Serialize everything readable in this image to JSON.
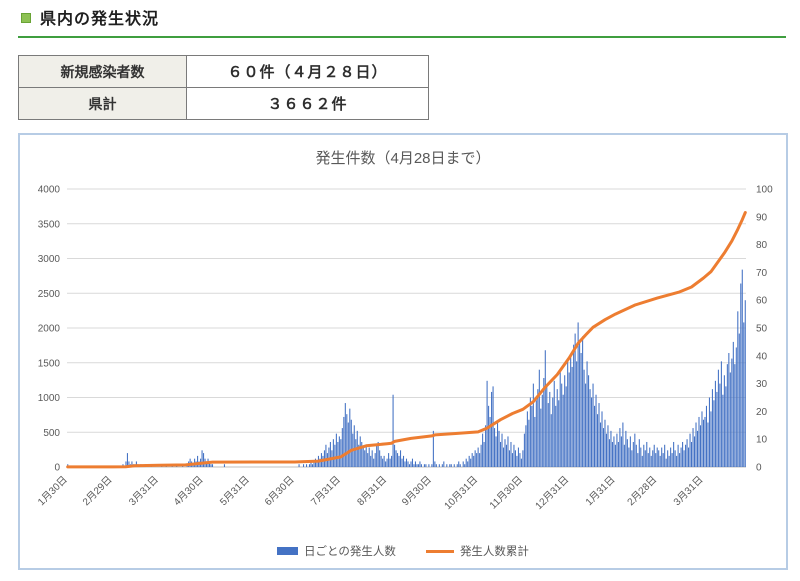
{
  "header": {
    "title": "県内の発生状況",
    "bullet_icon": "green-square-bullet",
    "rule_color": "#3f9e3f"
  },
  "summary_table": {
    "rows": [
      {
        "label": "新規感染者数",
        "value": "６０件（４月２８日）"
      },
      {
        "label": "県計",
        "value": "３６６２件"
      }
    ]
  },
  "chart_data": {
    "type": "combo",
    "title": "発生件数（4月28日まで）",
    "grid": true,
    "legend_position": "bottom",
    "num_days": 455,
    "x_tick_labels": [
      "1月30日",
      "2月29日",
      "3月31日",
      "4月30日",
      "5月31日",
      "6月30日",
      "7月31日",
      "8月31日",
      "9月30日",
      "10月31日",
      "11月30日",
      "12月31日",
      "1月31日",
      "2月28日",
      "3月31日"
    ],
    "x_tick_day_index": [
      0,
      30,
      61,
      91,
      122,
      152,
      183,
      214,
      244,
      275,
      305,
      336,
      367,
      395,
      426
    ],
    "left_axis": {
      "min": 0,
      "max": 4000,
      "ticks": [
        0,
        500,
        1000,
        1500,
        2000,
        2500,
        3000,
        3500,
        4000
      ]
    },
    "right_axis": {
      "min": 0,
      "max": 100,
      "ticks": [
        0,
        10,
        20,
        30,
        40,
        50,
        60,
        70,
        80,
        90,
        100
      ]
    },
    "colors": {
      "grid": "#d9d9d9",
      "axis_line": "#bfbfbf",
      "text": "#595959"
    },
    "series": [
      {
        "name": "日ごとの発生人数",
        "type": "bar",
        "axis": "right",
        "color": "#4472c4",
        "daily_values": [
          1,
          0,
          0,
          0,
          0,
          0,
          0,
          0,
          0,
          0,
          0,
          0,
          0,
          0,
          0,
          0,
          0,
          0,
          0,
          0,
          0,
          0,
          0,
          0,
          0,
          0,
          0,
          0,
          0,
          0,
          0,
          0,
          0,
          0,
          0,
          0,
          0,
          1,
          0,
          2,
          5,
          2,
          1,
          2,
          1,
          1,
          2,
          1,
          0,
          1,
          0,
          0,
          1,
          0,
          0,
          0,
          1,
          0,
          0,
          0,
          0,
          0,
          0,
          1,
          0,
          0,
          1,
          0,
          0,
          0,
          1,
          0,
          0,
          1,
          0,
          0,
          0,
          1,
          0,
          0,
          1,
          2,
          3,
          2,
          1,
          3,
          2,
          4,
          2,
          3,
          6,
          5,
          3,
          2,
          3,
          2,
          1,
          1,
          0,
          0,
          0,
          0,
          0,
          0,
          0,
          1,
          0,
          0,
          0,
          0,
          0,
          0,
          0,
          0,
          0,
          0,
          0,
          0,
          0,
          0,
          0,
          0,
          0,
          0,
          0,
          0,
          0,
          0,
          0,
          0,
          0,
          0,
          0,
          0,
          0,
          0,
          0,
          0,
          0,
          0,
          0,
          0,
          0,
          0,
          0,
          0,
          0,
          0,
          0,
          0,
          0,
          0,
          0,
          0,
          0,
          1,
          0,
          0,
          1,
          0,
          1,
          0,
          1,
          2,
          1,
          2,
          3,
          2,
          4,
          3,
          5,
          4,
          6,
          8,
          5,
          7,
          9,
          6,
          10,
          8,
          12,
          9,
          11,
          10,
          14,
          18,
          23,
          19,
          16,
          21,
          17,
          12,
          15,
          10,
          13,
          8,
          11,
          9,
          7,
          6,
          8,
          5,
          7,
          4,
          6,
          3,
          5,
          8,
          9,
          6,
          4,
          3,
          4,
          2,
          3,
          5,
          3,
          4,
          26,
          8,
          6,
          5,
          4,
          6,
          3,
          4,
          2,
          3,
          2,
          1,
          2,
          3,
          1,
          2,
          1,
          1,
          2,
          1,
          0,
          1,
          1,
          0,
          1,
          0,
          1,
          13,
          2,
          1,
          0,
          1,
          0,
          1,
          2,
          0,
          1,
          0,
          1,
          1,
          0,
          1,
          0,
          1,
          2,
          1,
          0,
          2,
          1,
          3,
          2,
          4,
          3,
          5,
          4,
          6,
          5,
          7,
          5,
          8,
          12,
          9,
          15,
          31,
          22,
          18,
          27,
          29,
          14,
          11,
          16,
          13,
          9,
          12,
          7,
          10,
          8,
          11,
          6,
          9,
          5,
          8,
          6,
          4,
          7,
          5,
          3,
          6,
          12,
          15,
          20,
          17,
          25,
          22,
          30,
          18,
          24,
          28,
          35,
          21,
          26,
          32,
          42,
          29,
          23,
          27,
          19,
          25,
          31,
          22,
          28,
          24,
          35,
          30,
          26,
          33,
          29,
          38,
          34,
          40,
          36,
          44,
          48,
          38,
          52,
          45,
          41,
          47,
          35,
          30,
          38,
          33,
          28,
          25,
          30,
          22,
          26,
          19,
          23,
          16,
          20,
          14,
          17,
          12,
          15,
          10,
          13,
          9,
          11,
          8,
          12,
          9,
          14,
          11,
          16,
          8,
          13,
          10,
          7,
          11,
          6,
          9,
          12,
          8,
          5,
          10,
          7,
          4,
          8,
          6,
          9,
          5,
          7,
          4,
          6,
          8,
          5,
          7,
          6,
          4,
          7,
          5,
          8,
          3,
          6,
          4,
          7,
          5,
          9,
          6,
          4,
          8,
          5,
          7,
          9,
          6,
          8,
          10,
          7,
          12,
          9,
          14,
          11,
          16,
          13,
          18,
          15,
          20,
          17,
          18,
          22,
          16,
          25,
          20,
          28,
          24,
          31,
          27,
          35,
          30,
          38,
          26,
          33,
          29,
          37,
          41,
          34,
          39,
          45,
          37,
          43,
          56,
          48,
          66,
          71,
          52,
          60
        ]
      },
      {
        "name": "発生人数累計",
        "type": "line",
        "axis": "left",
        "color": "#ed7d31",
        "final_total": 3662,
        "anchor_points": [
          [
            0,
            1
          ],
          [
            30,
            2
          ],
          [
            39,
            5
          ],
          [
            45,
            18
          ],
          [
            61,
            25
          ],
          [
            79,
            30
          ],
          [
            91,
            58
          ],
          [
            97,
            70
          ],
          [
            152,
            72
          ],
          [
            168,
            85
          ],
          [
            183,
            145
          ],
          [
            190,
            240
          ],
          [
            200,
            305
          ],
          [
            214,
            335
          ],
          [
            217,
            342
          ],
          [
            219,
            368
          ],
          [
            230,
            412
          ],
          [
            244,
            448
          ],
          [
            246,
            462
          ],
          [
            260,
            482
          ],
          [
            275,
            505
          ],
          [
            281,
            560
          ],
          [
            290,
            680
          ],
          [
            298,
            770
          ],
          [
            305,
            830
          ],
          [
            312,
            940
          ],
          [
            320,
            1150
          ],
          [
            328,
            1330
          ],
          [
            336,
            1570
          ],
          [
            342,
            1780
          ],
          [
            347,
            1900
          ],
          [
            352,
            2010
          ],
          [
            360,
            2120
          ],
          [
            367,
            2200
          ],
          [
            380,
            2330
          ],
          [
            395,
            2430
          ],
          [
            410,
            2520
          ],
          [
            418,
            2590
          ],
          [
            426,
            2720
          ],
          [
            431,
            2810
          ],
          [
            434,
            2900
          ],
          [
            440,
            3080
          ],
          [
            445,
            3250
          ],
          [
            449,
            3420
          ],
          [
            452,
            3560
          ],
          [
            454,
            3662
          ]
        ]
      }
    ]
  }
}
